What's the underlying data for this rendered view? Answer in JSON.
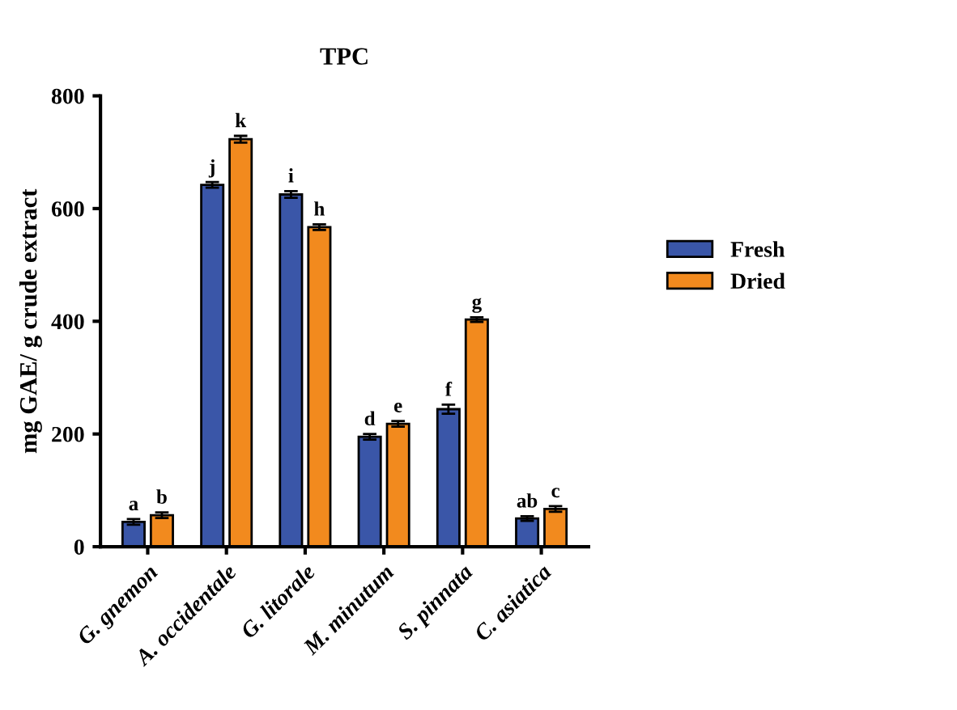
{
  "chart_data": {
    "type": "bar",
    "title": "TPC",
    "ylabel": "mg GAE/ g crude extract",
    "categories": [
      "G. gnemon",
      "A. occidentale",
      "G. litorale",
      "M. minutum",
      "S. pinnata",
      "C. asiatica"
    ],
    "series": [
      {
        "name": "Fresh",
        "color": "#3a56a8",
        "values": [
          44,
          642,
          625,
          195,
          244,
          50
        ],
        "errors": [
          5,
          5,
          6,
          5,
          8,
          4
        ],
        "value_labels": [
          "a",
          "j",
          "i",
          "d",
          "f",
          "ab"
        ]
      },
      {
        "name": "Dried",
        "color": "#f28a1e",
        "values": [
          56,
          723,
          567,
          218,
          403,
          67
        ],
        "errors": [
          5,
          6,
          5,
          5,
          4,
          5
        ],
        "value_labels": [
          "b",
          "k",
          "h",
          "e",
          "g",
          "c"
        ]
      }
    ],
    "ylim": [
      0,
      800
    ],
    "yticks": [
      0,
      200,
      400,
      600,
      800
    ],
    "legend": "right",
    "grid": false
  }
}
